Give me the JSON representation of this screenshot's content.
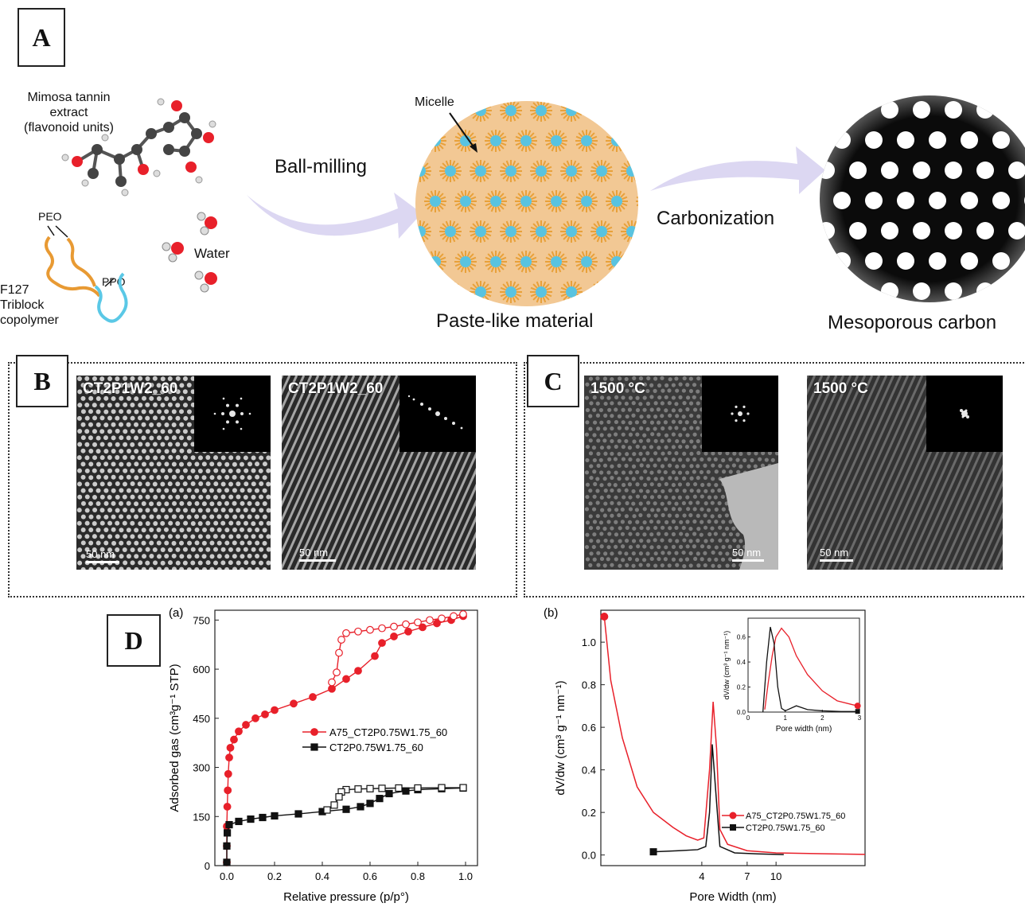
{
  "panel_labels": {
    "a": "A",
    "b": "B",
    "c": "C",
    "d": "D"
  },
  "schematic": {
    "tannin_label": "Mimosa tannin\nextract\n(flavonoid units)",
    "peo_label": "PEO",
    "ppo_label": "PPO",
    "water_label": "Water",
    "copolymer_label": "F127\nTriblock\ncopolymer",
    "step1_label": "Ball-milling",
    "micelle_label": "Micelle",
    "paste_label": "Paste-like material",
    "step2_label": "Carbonization",
    "carbon_label": "Mesoporous carbon",
    "colors": {
      "paste": "#f2c894",
      "micelle_core": "#59c3e0",
      "micelle_shell": "#e8a13a",
      "arrow": "#d9d6f0",
      "carbon": "#111111"
    }
  },
  "tem_b": {
    "image1_label": "CT2P1W2_60",
    "image2_label": "CT2P1W2_60",
    "scale1": "50 nm",
    "scale2": "50 nm"
  },
  "tem_c": {
    "image1_label": "1500 °C",
    "image2_label": "1500 °C",
    "scale1": "50 nm",
    "scale2": "50 nm"
  },
  "chart_data": [
    {
      "type": "line",
      "panel": "(a)",
      "xlabel": "Relative pressure (p/p°)",
      "ylabel": "Adsorbed gas (cm³g⁻¹ STP)",
      "xlim": [
        -0.05,
        1.05
      ],
      "ylim": [
        0,
        780
      ],
      "xticks": [
        "0.0",
        "0.2",
        "0.4",
        "0.6",
        "0.8",
        "1.0"
      ],
      "yticks": [
        "0",
        "150",
        "300",
        "450",
        "600",
        "750"
      ],
      "legend_position": "center-right",
      "series": [
        {
          "name": "A75_CT2P0.75W1.75_60",
          "color": "#e8202a",
          "marker": "circle",
          "adsorption": [
            [
              0.0,
              10
            ],
            [
              0.0,
              60
            ],
            [
              0.0,
              120
            ],
            [
              0.002,
              180
            ],
            [
              0.004,
              230
            ],
            [
              0.006,
              280
            ],
            [
              0.01,
              330
            ],
            [
              0.015,
              360
            ],
            [
              0.03,
              385
            ],
            [
              0.05,
              410
            ],
            [
              0.08,
              430
            ],
            [
              0.12,
              450
            ],
            [
              0.16,
              462
            ],
            [
              0.2,
              475
            ],
            [
              0.28,
              495
            ],
            [
              0.36,
              515
            ],
            [
              0.44,
              540
            ],
            [
              0.5,
              570
            ],
            [
              0.55,
              595
            ],
            [
              0.62,
              640
            ],
            [
              0.65,
              680
            ],
            [
              0.7,
              700
            ],
            [
              0.76,
              715
            ],
            [
              0.82,
              728
            ],
            [
              0.88,
              740
            ],
            [
              0.94,
              750
            ],
            [
              0.99,
              762
            ]
          ],
          "desorption": [
            [
              0.99,
              768
            ],
            [
              0.95,
              762
            ],
            [
              0.9,
              755
            ],
            [
              0.85,
              750
            ],
            [
              0.8,
              743
            ],
            [
              0.75,
              737
            ],
            [
              0.7,
              730
            ],
            [
              0.65,
              725
            ],
            [
              0.6,
              720
            ],
            [
              0.55,
              715
            ],
            [
              0.5,
              710
            ],
            [
              0.48,
              690
            ],
            [
              0.47,
              650
            ],
            [
              0.46,
              590
            ],
            [
              0.44,
              560
            ]
          ]
        },
        {
          "name": "CT2P0.75W1.75_60",
          "color": "#111111",
          "marker": "square",
          "adsorption": [
            [
              0.0,
              10
            ],
            [
              0.0,
              60
            ],
            [
              0.002,
              100
            ],
            [
              0.01,
              125
            ],
            [
              0.05,
              135
            ],
            [
              0.1,
              142
            ],
            [
              0.15,
              147
            ],
            [
              0.2,
              152
            ],
            [
              0.3,
              158
            ],
            [
              0.4,
              165
            ],
            [
              0.5,
              172
            ],
            [
              0.56,
              180
            ],
            [
              0.6,
              190
            ],
            [
              0.64,
              205
            ],
            [
              0.68,
              220
            ],
            [
              0.75,
              228
            ],
            [
              0.8,
              232
            ],
            [
              0.9,
              235
            ],
            [
              0.99,
              237
            ]
          ],
          "desorption": [
            [
              0.99,
              238
            ],
            [
              0.9,
              238
            ],
            [
              0.8,
              237
            ],
            [
              0.72,
              237
            ],
            [
              0.65,
              236
            ],
            [
              0.6,
              235
            ],
            [
              0.55,
              234
            ],
            [
              0.5,
              232
            ],
            [
              0.48,
              225
            ],
            [
              0.47,
              210
            ],
            [
              0.45,
              185
            ],
            [
              0.42,
              170
            ]
          ]
        }
      ]
    },
    {
      "type": "line",
      "panel": "(b)",
      "xlabel": "Pore Width (nm)",
      "ylabel": "dV/dw (cm³ g⁻¹ nm⁻¹)",
      "xscale": "log",
      "xlim": [
        1.15,
        30
      ],
      "ylim": [
        -0.05,
        1.15
      ],
      "xticks": [
        "4",
        "7",
        "10"
      ],
      "yticks": [
        "0.0",
        "0.2",
        "0.4",
        "0.6",
        "0.8",
        "1.0"
      ],
      "legend_position": "lower-right",
      "series": [
        {
          "name": "A75_CT2P0.75W1.75_60",
          "color": "#e8202a",
          "points": [
            [
              1.2,
              1.12
            ],
            [
              1.3,
              0.82
            ],
            [
              1.5,
              0.55
            ],
            [
              1.8,
              0.32
            ],
            [
              2.2,
              0.2
            ],
            [
              2.8,
              0.13
            ],
            [
              3.3,
              0.09
            ],
            [
              3.8,
              0.07
            ],
            [
              4.1,
              0.08
            ],
            [
              4.4,
              0.4
            ],
            [
              4.6,
              0.72
            ],
            [
              4.8,
              0.5
            ],
            [
              5.0,
              0.12
            ],
            [
              5.5,
              0.05
            ],
            [
              7,
              0.02
            ],
            [
              10,
              0.01
            ],
            [
              20,
              0.005
            ],
            [
              30,
              0.003
            ]
          ]
        },
        {
          "name": "CT2P0.75W1.75_60",
          "color": "#111111",
          "points": [
            [
              2.2,
              0.015
            ],
            [
              3.0,
              0.02
            ],
            [
              3.8,
              0.025
            ],
            [
              4.2,
              0.04
            ],
            [
              4.4,
              0.2
            ],
            [
              4.55,
              0.52
            ],
            [
              4.75,
              0.3
            ],
            [
              5.0,
              0.04
            ],
            [
              6,
              0.01
            ],
            [
              8,
              0.005
            ],
            [
              11,
              0.002
            ]
          ]
        }
      ]
    },
    {
      "type": "line",
      "panel": "(b) inset",
      "xlabel": "Pore width (nm)",
      "ylabel": "dV/dw (cm³ g⁻¹ nm⁻¹)",
      "xlim": [
        0,
        3
      ],
      "ylim": [
        0,
        0.75
      ],
      "xticks": [
        "0",
        "1",
        "2",
        "3"
      ],
      "yticks": [
        "0.0",
        "0.2",
        "0.4",
        "0.6"
      ],
      "series": [
        {
          "name": "A75_CT2P0.75W1.75_60",
          "color": "#e8202a",
          "points": [
            [
              0.45,
              0.02
            ],
            [
              0.55,
              0.25
            ],
            [
              0.65,
              0.45
            ],
            [
              0.75,
              0.6
            ],
            [
              0.9,
              0.67
            ],
            [
              1.1,
              0.6
            ],
            [
              1.3,
              0.45
            ],
            [
              1.6,
              0.3
            ],
            [
              2.0,
              0.17
            ],
            [
              2.4,
              0.09
            ],
            [
              2.8,
              0.06
            ],
            [
              2.95,
              0.05
            ]
          ]
        },
        {
          "name": "CT2P0.75W1.75_60",
          "color": "#111111",
          "points": [
            [
              0.4,
              0.0
            ],
            [
              0.5,
              0.4
            ],
            [
              0.6,
              0.68
            ],
            [
              0.7,
              0.55
            ],
            [
              0.8,
              0.2
            ],
            [
              0.9,
              0.03
            ],
            [
              1.0,
              0.01
            ],
            [
              1.3,
              0.05
            ],
            [
              1.6,
              0.02
            ],
            [
              2.0,
              0.01
            ],
            [
              2.5,
              0.005
            ],
            [
              2.95,
              0.005
            ]
          ]
        }
      ]
    }
  ]
}
